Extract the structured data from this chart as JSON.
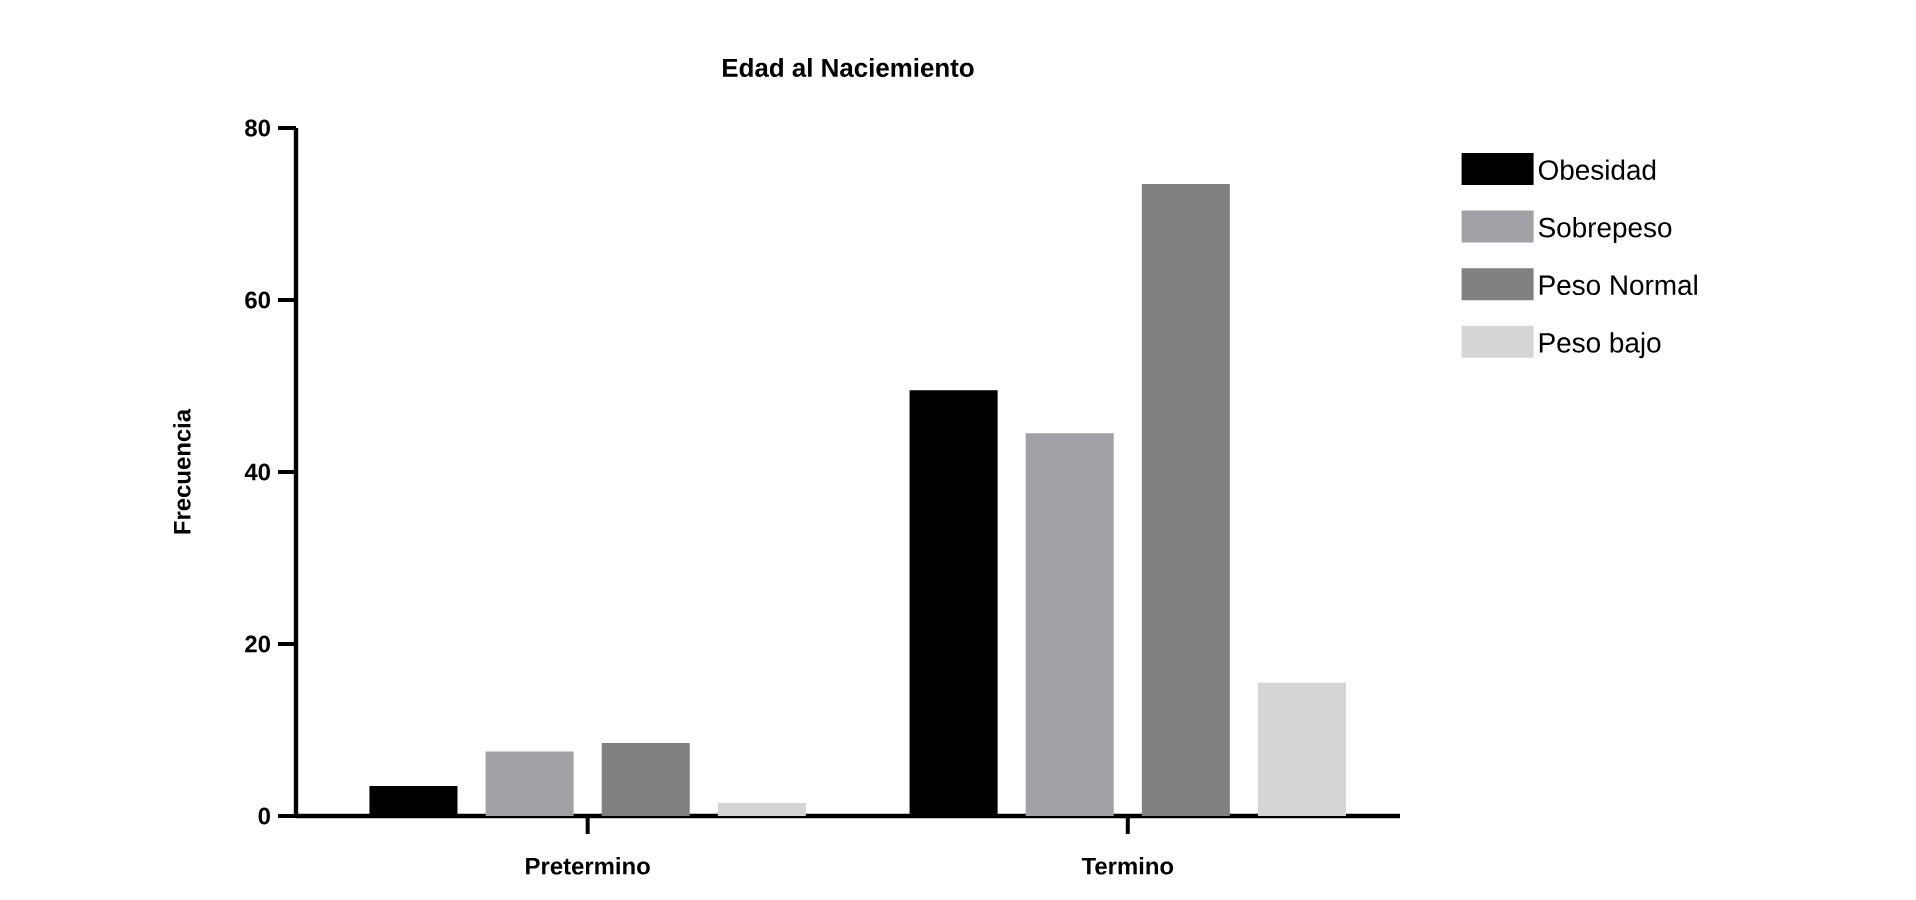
{
  "chart_data": {
    "type": "bar",
    "title": "Edad al Naciemiento",
    "ylabel": "Frecuencia",
    "categories": [
      "Pretermino",
      "Termino"
    ],
    "series": [
      {
        "name": "Obesidad",
        "color": "#000000",
        "values": [
          3.5,
          49.5
        ]
      },
      {
        "name": "Sobrepeso",
        "color": "#a2a1a5",
        "values": [
          7.5,
          44.5
        ]
      },
      {
        "name": "Peso Normal",
        "color": "#808080",
        "values": [
          8.5,
          73.5
        ]
      },
      {
        "name": "Peso bajo",
        "color": "#d5d5d5",
        "values": [
          1.5,
          15.5
        ]
      }
    ],
    "ylim": [
      0,
      80
    ],
    "yticks": [
      0,
      20,
      40,
      60,
      80
    ],
    "legend": "top right"
  }
}
